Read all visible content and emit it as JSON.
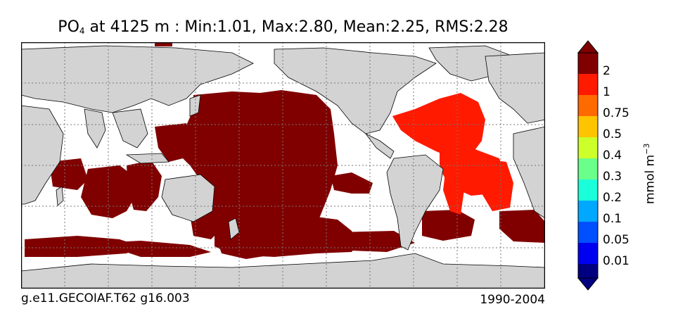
{
  "title": {
    "variable": "PO",
    "subscript": "4",
    "rest": " at 4125 m : Min:1.01, Max:2.80, Mean:2.25, RMS:2.28"
  },
  "footer": {
    "run_id": "g.e11.GECOIAF.T62 g16.003",
    "years": "1990-2004"
  },
  "colorbar": {
    "unit_base": "mmol m",
    "unit_exp": "−3",
    "labels": [
      "2",
      "1",
      "0.75",
      "0.5",
      "0.4",
      "0.3",
      "0.2",
      "0.1",
      "0.05",
      "0.01"
    ],
    "colors_top_to_bottom": [
      "#800000",
      "#ff1a00",
      "#ff6a00",
      "#ffc400",
      "#cdff2a",
      "#6aff8a",
      "#1affda",
      "#00a8ff",
      "#0050ff",
      "#0000f0",
      "#000080"
    ],
    "extend": "both"
  },
  "map": {
    "land_color": "#d3d3d3",
    "ocean_nodata_color": "#ffffff",
    "high_value_color": "#800000",
    "atlantic_value_color": "#ff1a00",
    "gridlines": "dotted"
  }
}
